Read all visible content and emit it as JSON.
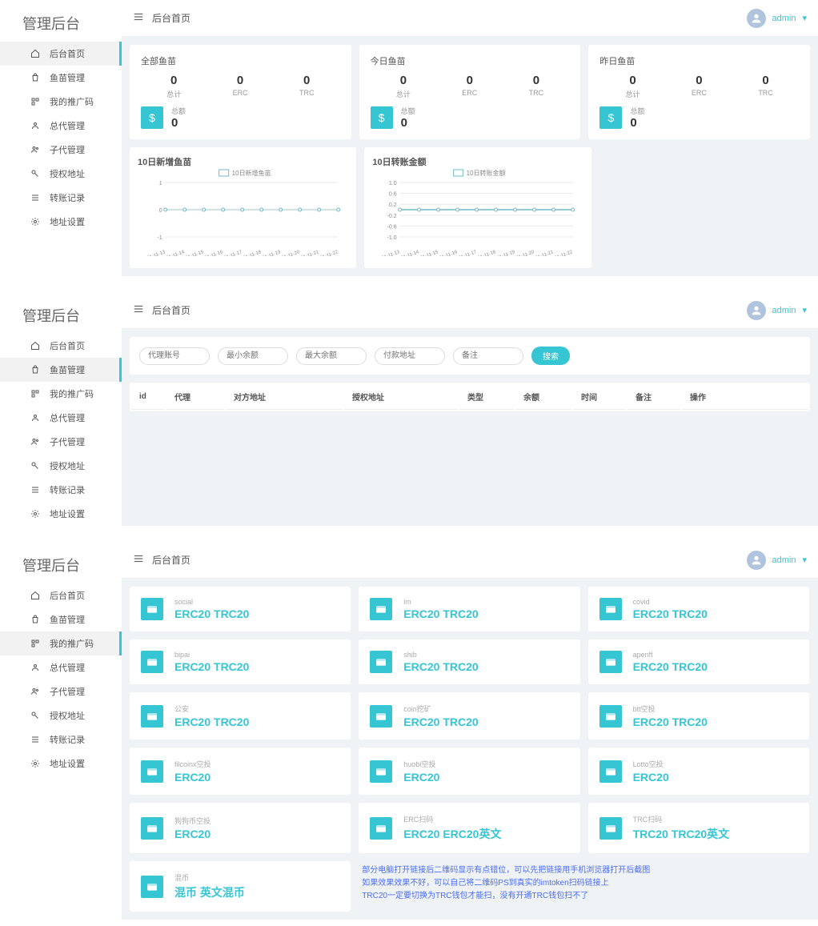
{
  "sidebar": {
    "title": "管理后台",
    "items": [
      {
        "label": "后台首页",
        "icon": "home"
      },
      {
        "label": "鱼苗管理",
        "icon": "bag"
      },
      {
        "label": "我的推广码",
        "icon": "qr"
      },
      {
        "label": "总代管理",
        "icon": "person"
      },
      {
        "label": "子代管理",
        "icon": "people"
      },
      {
        "label": "授权地址",
        "icon": "key"
      },
      {
        "label": "转账记录",
        "icon": "list"
      },
      {
        "label": "地址设置",
        "icon": "gear"
      }
    ]
  },
  "header": {
    "breadcrumb": "后台首页",
    "user": "admin"
  },
  "panel1": {
    "cards": [
      {
        "title": "全部鱼苗",
        "stats": [
          {
            "v": "0",
            "l": "总计"
          },
          {
            "v": "0",
            "l": "ERC"
          },
          {
            "v": "0",
            "l": "TRC"
          }
        ],
        "total_label": "总额",
        "total_value": "0"
      },
      {
        "title": "今日鱼苗",
        "stats": [
          {
            "v": "0",
            "l": "总计"
          },
          {
            "v": "0",
            "l": "ERC"
          },
          {
            "v": "0",
            "l": "TRC"
          }
        ],
        "total_label": "总额",
        "total_value": "0"
      },
      {
        "title": "昨日鱼苗",
        "stats": [
          {
            "v": "0",
            "l": "总计"
          },
          {
            "v": "0",
            "l": "ERC"
          },
          {
            "v": "0",
            "l": "TRC"
          }
        ],
        "total_label": "总额",
        "total_value": "0"
      }
    ],
    "charts": [
      {
        "title": "10日新增鱼苗",
        "legend": "10日新增鱼苗",
        "x_labels": [
          "2021-11-13",
          "2021-11-14",
          "2021-11-15",
          "2021-11-16",
          "2021-11-17",
          "2021-11-18",
          "2021-11-19",
          "2021-11-20",
          "2021-11-21",
          "2021-11-22"
        ],
        "y_ticks": [
          "-1",
          "0",
          "1"
        ],
        "values": [
          0,
          0,
          0,
          0,
          0,
          0,
          0,
          0,
          0,
          0
        ],
        "line_color": "#6fb8c9",
        "bg": "#ffffff",
        "grid": "#e8e8e8"
      },
      {
        "title": "10日转账金额",
        "legend": "10日转账金额",
        "x_labels": [
          "2021-11-13",
          "2021-11-14",
          "2021-11-15",
          "2021-11-16",
          "2021-11-17",
          "2021-11-18",
          "2021-11-19",
          "2021-11-20",
          "2021-11-21",
          "2021-11-22"
        ],
        "y_ticks": [
          "-1.0",
          "-0.6",
          "-0.2",
          "0.2",
          "0.6",
          "1.0"
        ],
        "values": [
          0,
          0,
          0,
          0,
          0,
          0,
          0,
          0,
          0,
          0
        ],
        "line_color": "#6fb8c9",
        "bg": "#ffffff",
        "grid": "#e8e8e8"
      }
    ]
  },
  "panel2": {
    "filters": {
      "f1": "代理账号",
      "f2": "最小余额",
      "f3": "最大余额",
      "f4": "付款地址",
      "f5": "备注",
      "btn": "搜索"
    },
    "columns": [
      "id",
      "代理",
      "对方地址",
      "授权地址",
      "类型",
      "余额",
      "时间",
      "备注",
      "操作"
    ]
  },
  "panel3": {
    "promos": [
      {
        "name": "social",
        "val": "ERC20 TRC20"
      },
      {
        "name": "im",
        "val": "ERC20 TRC20"
      },
      {
        "name": "covid",
        "val": "ERC20 TRC20"
      },
      {
        "name": "bipai",
        "val": "ERC20 TRC20"
      },
      {
        "name": "shib",
        "val": "ERC20 TRC20"
      },
      {
        "name": "apenft",
        "val": "ERC20 TRC20"
      },
      {
        "name": "公安",
        "val": "ERC20 TRC20"
      },
      {
        "name": "coin挖矿",
        "val": "ERC20 TRC20"
      },
      {
        "name": "btt空投",
        "val": "ERC20 TRC20"
      },
      {
        "name": "filcoinx空投",
        "val": "ERC20"
      },
      {
        "name": "huobi空投",
        "val": "ERC20"
      },
      {
        "name": "Lotto空投",
        "val": "ERC20"
      },
      {
        "name": "狗狗币空投",
        "val": "ERC20"
      },
      {
        "name": "ERC扫码",
        "val": "ERC20 ERC20英文"
      },
      {
        "name": "TRC扫码",
        "val": "TRC20 TRC20英文"
      },
      {
        "name": "混币",
        "val": "混币 英文混币"
      }
    ],
    "note1": "部分电脑打开链接后二维码显示有点错位，可以先把链接用手机浏览器打开后截图",
    "note2": "如果效果效果不好，可以自己将二维码PS到真实的imtoken扫码链接上",
    "note3": "TRC20一定要切换为TRC钱包才能扫，没有开通TRC钱包扫不了"
  }
}
